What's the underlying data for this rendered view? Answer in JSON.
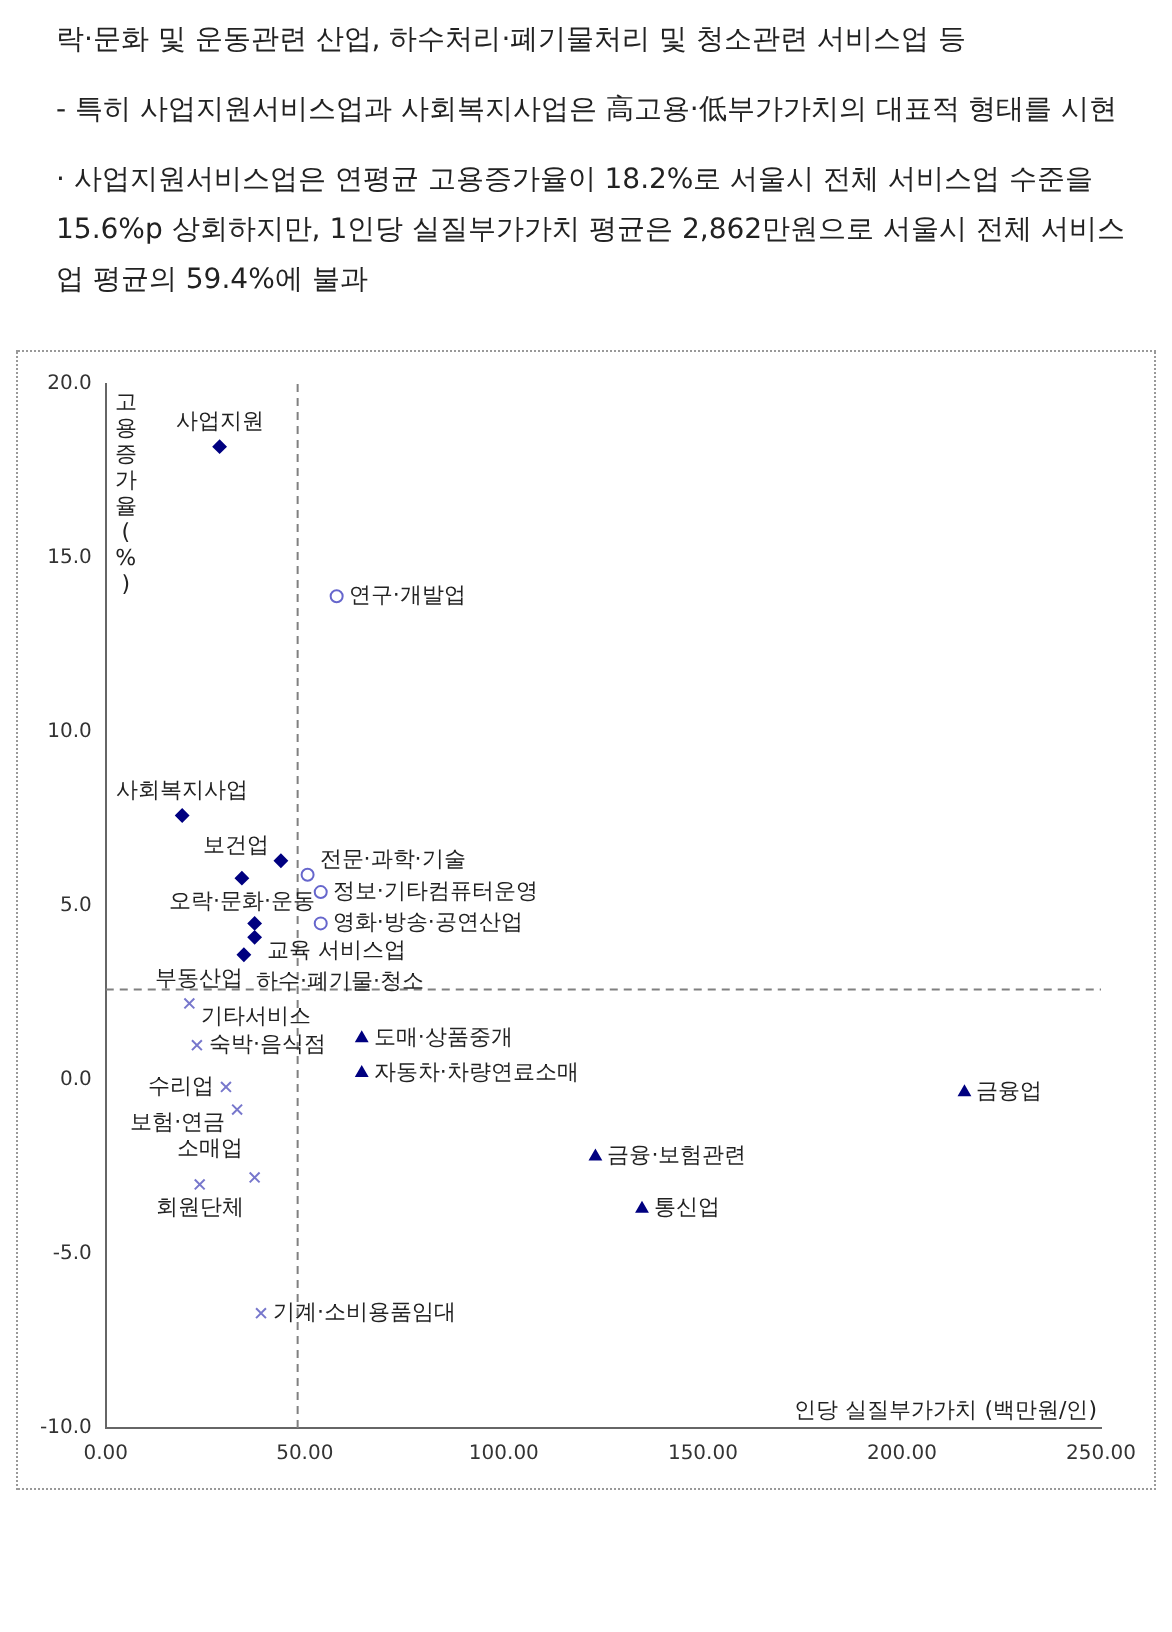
{
  "chart_data": {
    "type": "scatter",
    "annotations": [
      "락·문화 및 운동관련 산업, 하수처리·폐기물처리 및 청소관련 서비스업 등",
      "- 특히 사업지원서비스업과 사회복지사업은 高고용·低부가가치의 대표적 형태를 시현",
      "· 사업지원서비스업은 연평균 고용증가율이 18.2%로 서울시 전체 서비스업 수준을 15.6%p 상회하지만, 1인당 실질부가가치 평균은 2,862만원으로 서울시 전체 서비스업 평균의 59.4%에 불과",
      {
        "text": "사업지원",
        "x": 28.6,
        "y": 18.2
      },
      {
        "text": "사회복지사업",
        "x": 19.2,
        "y": 7.6
      },
      {
        "text": "보건업",
        "x": 44.0,
        "y": 6.3
      },
      {
        "text": "오락·문화·운동",
        "x": 34.2,
        "y": 5.8
      },
      {
        "text": "교육 서비스업",
        "x": 37.4,
        "y": 4.5
      },
      {
        "text": "부동산업",
        "x": 37.4,
        "y": 4.1
      },
      {
        "text": "하수·폐기물·청소",
        "x": 34.7,
        "y": 3.6
      },
      {
        "text": "연구·개발업",
        "x": 58.0,
        "y": 13.9
      },
      {
        "text": "전문·과학·기술",
        "x": 50.7,
        "y": 5.9
      },
      {
        "text": "정보·기타컴퓨터운영",
        "x": 54.0,
        "y": 5.4
      },
      {
        "text": "영화·방송·공연산업",
        "x": 54.0,
        "y": 4.5
      },
      {
        "text": "기타서비스",
        "x": 21.0,
        "y": 2.2
      },
      {
        "text": "숙박·음식점",
        "x": 22.9,
        "y": 1.0
      },
      {
        "text": "수리업",
        "x": 30.2,
        "y": -0.2
      },
      {
        "text": "보험·연금",
        "x": 33.0,
        "y": -0.85
      },
      {
        "text": "소매업",
        "x": 37.4,
        "y": -2.8
      },
      {
        "text": "회원단체",
        "x": 23.6,
        "y": -3.0
      },
      {
        "text": "기계·소비용품임대",
        "x": 39.0,
        "y": -6.7
      },
      {
        "text": "도매·상품중개",
        "x": 64.3,
        "y": 1.2
      },
      {
        "text": "자동차·차량연료소매",
        "x": 64.3,
        "y": 0.2
      },
      {
        "text": "금융·보험관련",
        "x": 123.0,
        "y": -2.2
      },
      {
        "text": "통신업",
        "x": 134.7,
        "y": -3.7
      },
      {
        "text": "금융업",
        "x": 215.7,
        "y": -0.35
      }
    ],
    "xlabel": "인당 실질부가가치 (백만원/인)",
    "ylabel": "고용증가율(%)",
    "series": [
      {
        "color": "#000080",
        "marker": "diamond",
        "x": [
          28.6,
          19.2,
          44.0,
          34.2,
          37.4,
          37.4,
          34.7
        ],
        "values": [
          18.2,
          7.6,
          6.3,
          5.8,
          4.5,
          4.1,
          3.6
        ]
      },
      {
        "color": "#6666cc",
        "marker": "circle",
        "x": [
          58.0,
          50.7,
          54.0,
          54.0
        ],
        "values": [
          13.9,
          5.9,
          5.4,
          4.5
        ]
      },
      {
        "color": "#7777cc",
        "marker": "cross",
        "x": [
          21.0,
          22.9,
          30.2,
          33.0,
          37.4,
          23.6,
          39.0
        ],
        "values": [
          2.2,
          1.0,
          -0.2,
          -0.85,
          -2.8,
          -3.0,
          -6.7
        ]
      },
      {
        "color": "#000080",
        "marker": "triangle",
        "x": [
          64.3,
          64.3,
          123.0,
          134.7,
          215.7
        ],
        "values": [
          1.2,
          0.2,
          -2.2,
          -3.7,
          -0.35
        ]
      }
    ],
    "xlim": [
      0,
      250
    ],
    "ylim": [
      -10,
      20
    ],
    "xticks": [
      {
        "value": 0,
        "label": "0.00"
      },
      {
        "value": 50,
        "label": "50.00"
      },
      {
        "value": 100,
        "label": "100.00"
      },
      {
        "value": 150,
        "label": "150.00"
      },
      {
        "value": 200,
        "label": "200.00"
      },
      {
        "value": 250,
        "label": "250.00"
      }
    ],
    "yticks": [
      {
        "value": -10,
        "label": "-10.0"
      },
      {
        "value": -5,
        "label": "-5.0"
      },
      {
        "value": 0,
        "label": "0.0"
      },
      {
        "value": 5,
        "label": "5.0"
      },
      {
        "value": 10,
        "label": "10.0"
      },
      {
        "value": 15,
        "label": "15.0"
      },
      {
        "value": 20,
        "label": "20.0"
      }
    ],
    "ref_lines": [
      {
        "axis": "x",
        "value": 48.2,
        "color": "#808080",
        "line_style": "dashed"
      },
      {
        "axis": "y",
        "value": 2.6,
        "color": "#808080",
        "line_style": "dashed"
      }
    ],
    "grid": false,
    "legend": false
  }
}
